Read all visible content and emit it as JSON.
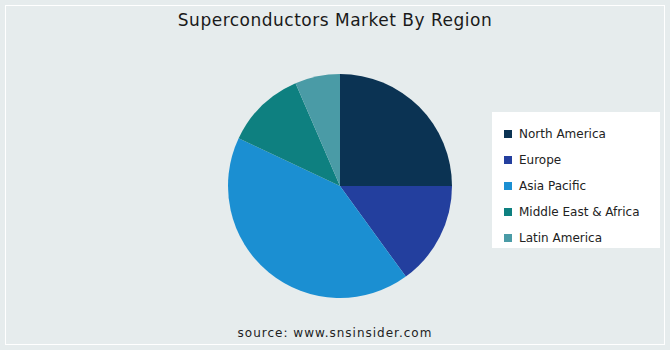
{
  "chart_data": {
    "type": "pie",
    "title": "Superconductors Market By Region",
    "source": "source: www.snsinsider.com",
    "categories": [
      "North America",
      "Europe",
      "Asia Pacific",
      "Middle East & Africa",
      "Latin America"
    ],
    "values": [
      25,
      15,
      42,
      11.5,
      6.5
    ],
    "colors": [
      "#0b3353",
      "#233f9e",
      "#1b8fd2",
      "#0e8080",
      "#4a9ba6"
    ],
    "legend": "right"
  }
}
